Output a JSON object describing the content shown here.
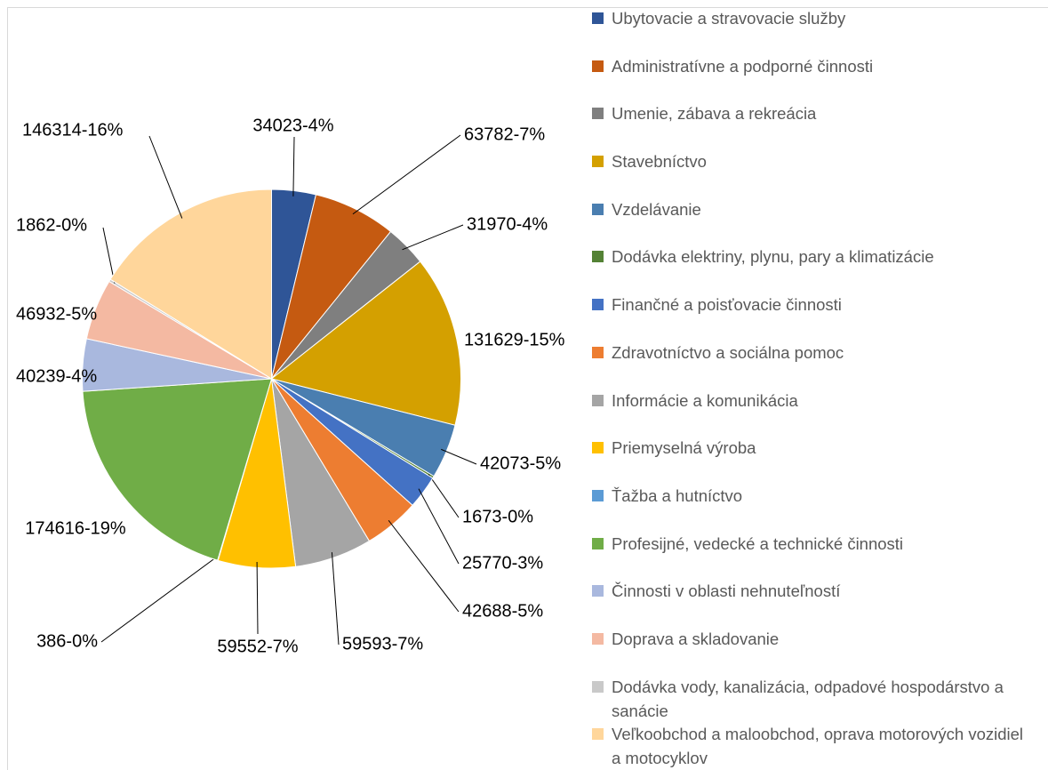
{
  "chart_data": {
    "type": "pie",
    "categories": [
      "Ubytovacie a stravovacie služby",
      "Administratívne a podporné činnosti",
      "Umenie, zábava a rekreácia",
      "Stavebníctvo",
      "Vzdelávanie",
      "Dodávka elektriny, plynu, pary a klimatizácie",
      "Finančné a poisťovacie činnosti",
      "Zdravotníctvo a sociálna pomoc",
      "Informácie a komunikácia",
      "Priemyselná výroba",
      "Ťažba a hutníctvo",
      "Profesijné, vedecké a technické činnosti",
      "Činnosti v oblasti nehnuteľností",
      "Doprava a skladovanie",
      "Dodávka vody, kanalizácia, odpadové hospodárstvo a sanácie",
      "Veľkoobchod a maloobchod, oprava motorových vozidiel a motocyklov"
    ],
    "values": [
      34023,
      63782,
      31970,
      131629,
      42073,
      1673,
      25770,
      42688,
      59593,
      59552,
      386,
      174616,
      40239,
      46932,
      1862,
      146314
    ],
    "value_labels": [
      "34023-4%",
      "63782-7%",
      "31970-4%",
      "131629-15%",
      "42073-5%",
      "1673-0%",
      "25770-3%",
      "42688-5%",
      "59593-7%",
      "59552-7%",
      "386-0%",
      "174616-19%",
      "40239-4%",
      "46932-5%",
      "1862-0%",
      "146314-16%"
    ],
    "colors": [
      "#2f5597",
      "#c55a11",
      "#7f7f7f",
      "#d4a000",
      "#4a7eb0",
      "#548235",
      "#4472c4",
      "#ed7d31",
      "#a5a5a5",
      "#ffc000",
      "#5b9bd5",
      "#70ad47",
      "#a9b8de",
      "#f4b9a2",
      "#c9c9c9",
      "#ffd69b"
    ],
    "legend": "right"
  }
}
